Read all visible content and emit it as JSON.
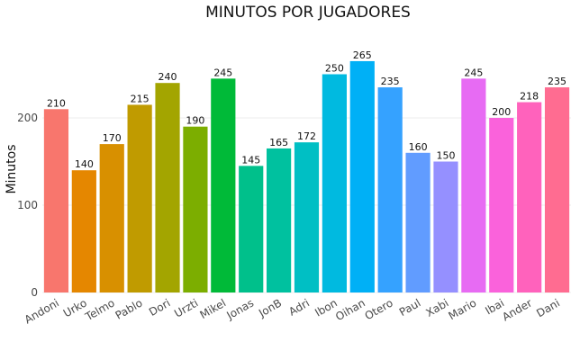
{
  "chart_data": {
    "type": "bar",
    "title": "MINUTOS POR JUGADORES",
    "xlabel": "",
    "ylabel": "Minutos",
    "ylim": [
      0,
      300
    ],
    "yticks": [
      0,
      100,
      200
    ],
    "grid": true,
    "legend": "none",
    "categories": [
      "Andoni",
      "Urko",
      "Telmo",
      "Pablo",
      "Dori",
      "Urzti",
      "Mikel",
      "Jonas",
      "JonB",
      "Adri",
      "Ibon",
      "Oihan",
      "Otero",
      "Paul",
      "Xabi",
      "Mario",
      "Ibai",
      "Ander",
      "Dani"
    ],
    "values": [
      210,
      140,
      170,
      215,
      240,
      190,
      245,
      145,
      165,
      172,
      250,
      265,
      235,
      160,
      150,
      245,
      200,
      218,
      235
    ],
    "colors": [
      "#F8766D",
      "#E58700",
      "#D89000",
      "#C09B00",
      "#A3A500",
      "#7CAE00",
      "#00BA38",
      "#00C08B",
      "#00C19F",
      "#00BFC4",
      "#00BAE0",
      "#00B0F6",
      "#35A2FF",
      "#619CFF",
      "#9590FF",
      "#E76BF3",
      "#FA62DB",
      "#FF62BC",
      "#FF6C91"
    ]
  }
}
